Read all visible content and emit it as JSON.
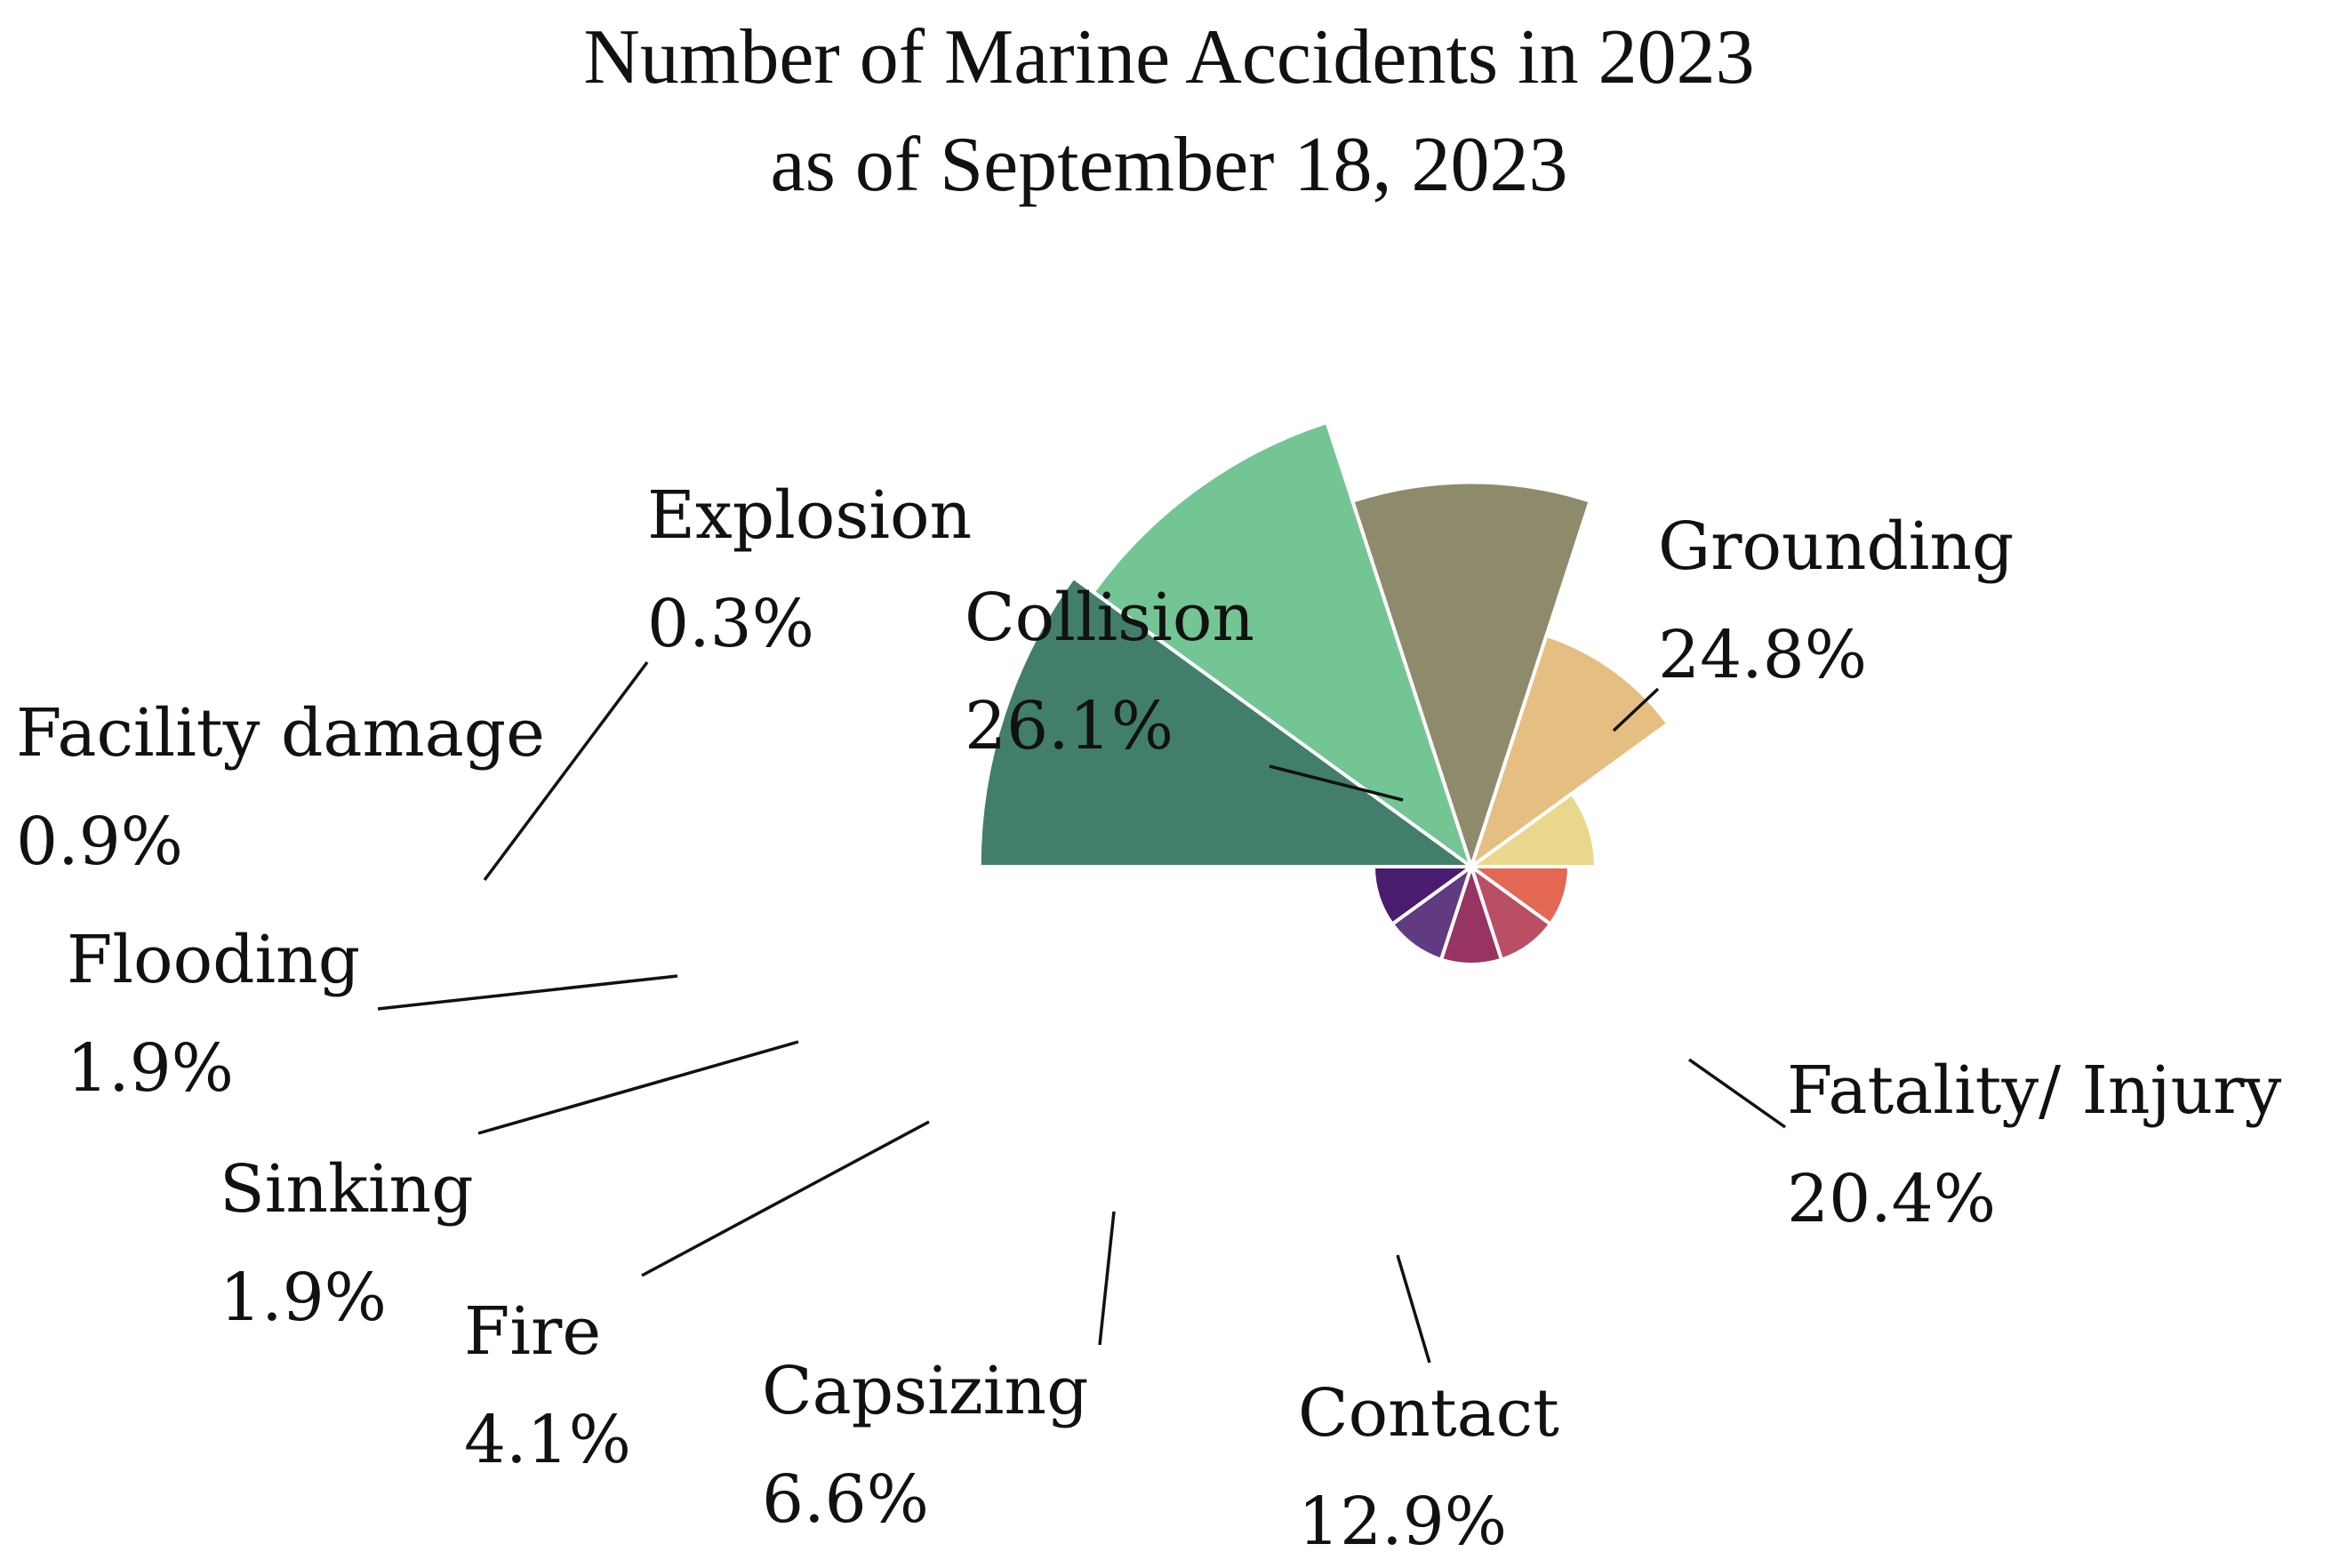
{
  "chart_data": {
    "type": "pie",
    "title": [
      "Number of Marine Accidents in 2023",
      "as of September 18, 2023"
    ],
    "categories": [
      "Collision",
      "Grounding",
      "Fatality/ Injury",
      "Contact",
      "Capsizing",
      "Fire",
      "Sinking",
      "Flooding",
      "Facility damage",
      "Explosion"
    ],
    "values": [
      26.1,
      24.8,
      20.4,
      12.9,
      6.6,
      4.1,
      1.9,
      1.9,
      0.9,
      0.3
    ],
    "value_labels": [
      "26.1%",
      "24.8%",
      "20.4%",
      "12.9%",
      "6.6%",
      "4.1%",
      "1.9%",
      "1.9%",
      "0.9%",
      "0.3%"
    ],
    "colors": [
      "#427f6b",
      "#74c594",
      "#8e8b6d",
      "#e5bf81",
      "#e9d78c",
      "#e36752",
      "#b94f64",
      "#973462",
      "#613b81",
      "#4a1c6f"
    ],
    "legend": "none"
  }
}
